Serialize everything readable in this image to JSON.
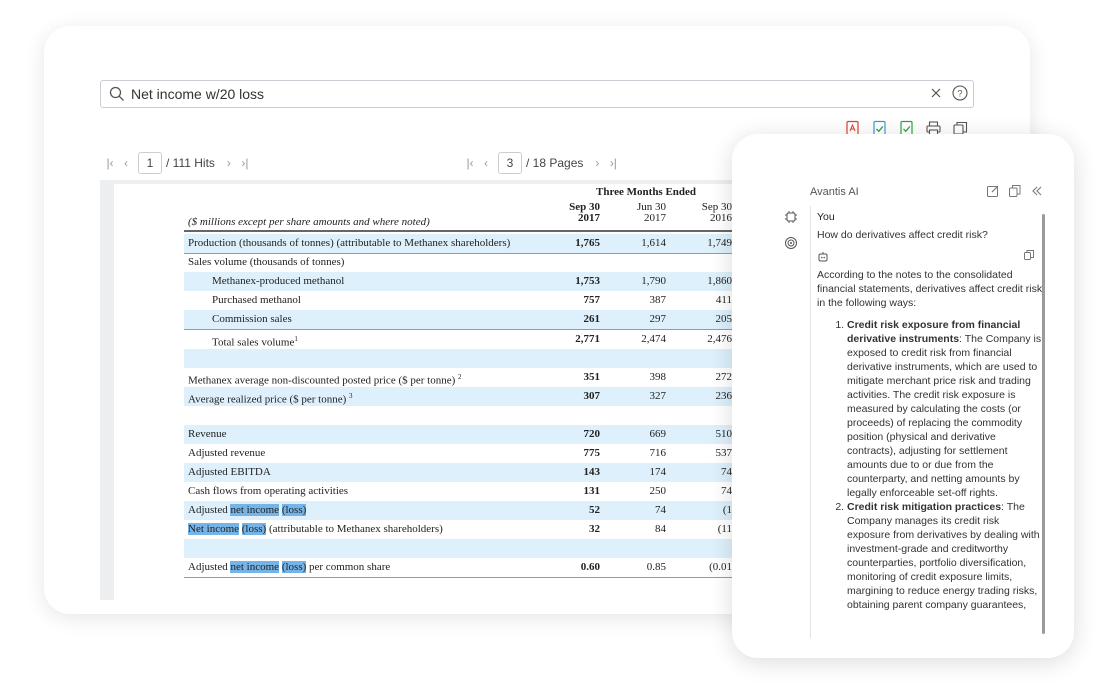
{
  "search": {
    "value": "Net income w/20 loss"
  },
  "toolbar": {
    "icons": [
      "pdf-icon",
      "check-doc-icon",
      "check-doc-green-icon",
      "print-icon",
      "copy-window-icon"
    ]
  },
  "hits_pager": {
    "current": "1",
    "total": "/ 111 Hits"
  },
  "pages_pager": {
    "current": "3",
    "total": "/ 18 Pages"
  },
  "table": {
    "caption": "Three Months Ended",
    "header_label": "($ millions except per share amounts and where noted)",
    "columns": [
      {
        "line1": "Sep 30",
        "line2": "2017"
      },
      {
        "line1": "Jun 30",
        "line2": "2017"
      },
      {
        "line1": "Sep 30",
        "line2": "2016"
      }
    ],
    "rows": [
      {
        "label": "Production (thousands of tonnes) (attributable to Methanex shareholders)",
        "v1": "1,765",
        "v2": "1,614",
        "v3": "1,749"
      },
      {
        "label": "Sales volume (thousands of tonnes)",
        "v1": "",
        "v2": "",
        "v3": ""
      },
      {
        "label": "Methanex-produced methanol",
        "v1": "1,753",
        "v2": "1,790",
        "v3": "1,860"
      },
      {
        "label": "Purchased methanol",
        "v1": "757",
        "v2": "387",
        "v3": "411"
      },
      {
        "label": "Commission sales",
        "v1": "261",
        "v2": "297",
        "v3": "205"
      },
      {
        "label": "Total sales volume",
        "sup": "1",
        "v1": "2,771",
        "v2": "2,474",
        "v3": "2,476"
      },
      {
        "label": "Methanex average non-discounted posted price ($ per tonne)",
        "sup": "2",
        "v1": "351",
        "v2": "398",
        "v3": "272"
      },
      {
        "label": "Average realized price ($ per tonne)",
        "sup": "3",
        "v1": "307",
        "v2": "327",
        "v3": "236"
      },
      {
        "label": "Revenue",
        "v1": "720",
        "v2": "669",
        "v3": "510"
      },
      {
        "label": "Adjusted revenue",
        "v1": "775",
        "v2": "716",
        "v3": "537"
      },
      {
        "label": "Adjusted EBITDA",
        "v1": "143",
        "v2": "174",
        "v3": "74"
      },
      {
        "label": "Cash flows from operating activities",
        "v1": "131",
        "v2": "250",
        "v3": "74"
      },
      {
        "label_pre": "Adjusted ",
        "hl1": "net income",
        "mid": " ",
        "hl2": "(loss)",
        "post": "",
        "v1": "52",
        "v2": "74",
        "v3": "(1"
      },
      {
        "label_pre": "",
        "hl1": "Net income",
        "mid": " ",
        "hl2": "(loss)",
        "post": " (attributable to Methanex shareholders)",
        "v1": "32",
        "v2": "84",
        "v3": "(11"
      },
      {
        "label_pre": "Adjusted ",
        "hl1": "net income",
        "mid": " ",
        "hl2": "(loss)",
        "post": " per common share",
        "v1": "0.60",
        "v2": "0.85",
        "v3": "(0.01"
      }
    ]
  },
  "ai": {
    "title": "Avantis AI",
    "you_label": "You",
    "question": "How do derivatives affect credit risk?",
    "intro": "According to the notes to the consolidated financial statements, derivatives affect credit risk in the following ways:",
    "points": [
      {
        "title": "Credit risk exposure from financial derivative instruments",
        "body": ": The Company is exposed to credit risk from financial derivative instruments, which are used to mitigate merchant price risk and trading activities. The credit risk exposure is measured by calculating the costs (or proceeds) of replacing the commodity position (physical and derivative contracts), adjusting for settlement amounts due to or due from the counterparty, and netting amounts by legally enforceable set-off rights."
      },
      {
        "title": "Credit risk mitigation practices",
        "body": ": The Company manages its credit risk exposure from derivatives by dealing with investment-grade and creditworthy counterparties, portfolio diversification, monitoring of credit exposure limits, margining to reduce energy trading risks, obtaining parent company guarantees,"
      }
    ]
  }
}
